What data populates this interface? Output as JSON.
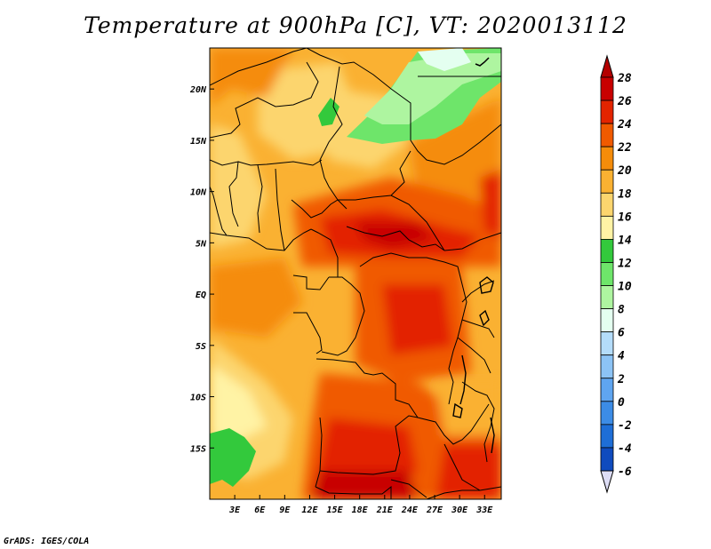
{
  "title": "Temperature at 900hPa [C], VT: 2020013112",
  "credit": "GrADS: IGES/COLA",
  "map": {
    "lon_range": [
      0,
      35
    ],
    "lat_range": [
      -20,
      24
    ],
    "lon_ticks": [
      {
        "value": 3,
        "label": "3E"
      },
      {
        "value": 6,
        "label": "6E"
      },
      {
        "value": 9,
        "label": "9E"
      },
      {
        "value": 12,
        "label": "12E"
      },
      {
        "value": 15,
        "label": "15E"
      },
      {
        "value": 18,
        "label": "18E"
      },
      {
        "value": 21,
        "label": "21E"
      },
      {
        "value": 24,
        "label": "24E"
      },
      {
        "value": 27,
        "label": "27E"
      },
      {
        "value": 30,
        "label": "30E"
      },
      {
        "value": 33,
        "label": "33E"
      }
    ],
    "lat_ticks": [
      {
        "value": 20,
        "label": "20N"
      },
      {
        "value": 15,
        "label": "15N"
      },
      {
        "value": 10,
        "label": "10N"
      },
      {
        "value": 5,
        "label": "5N"
      },
      {
        "value": 0,
        "label": "EQ"
      },
      {
        "value": -5,
        "label": "5S"
      },
      {
        "value": -10,
        "label": "10S"
      },
      {
        "value": -15,
        "label": "15S"
      }
    ]
  },
  "colorbar": {
    "levels": [
      {
        "value": "28",
        "color": "#c80000"
      },
      {
        "value": "26",
        "color": "#e32400"
      },
      {
        "value": "24",
        "color": "#f05a00"
      },
      {
        "value": "22",
        "color": "#f58c0a"
      },
      {
        "value": "20",
        "color": "#fab132"
      },
      {
        "value": "18",
        "color": "#fcd56e"
      },
      {
        "value": "16",
        "color": "#fff3a5"
      },
      {
        "value": "14",
        "color": "#33c93c"
      },
      {
        "value": "12",
        "color": "#6ee56a"
      },
      {
        "value": "10",
        "color": "#aef5a0"
      },
      {
        "value": "8",
        "color": "#e4fff0"
      },
      {
        "value": "6",
        "color": "#b4dcfa"
      },
      {
        "value": "4",
        "color": "#8cc3f5"
      },
      {
        "value": "2",
        "color": "#5fa5f0"
      },
      {
        "value": "0",
        "color": "#3c8ce6"
      },
      {
        "value": "-2",
        "color": "#1e6ed7"
      },
      {
        "value": "-4",
        "color": "#0f4bbe"
      },
      {
        "value": "-6",
        "color": "#0a2d96"
      }
    ],
    "top_arrow_color": "#b40000",
    "bottom_arrow_color": "#ddddf5",
    "lowest_box_color": "#05146e"
  }
}
